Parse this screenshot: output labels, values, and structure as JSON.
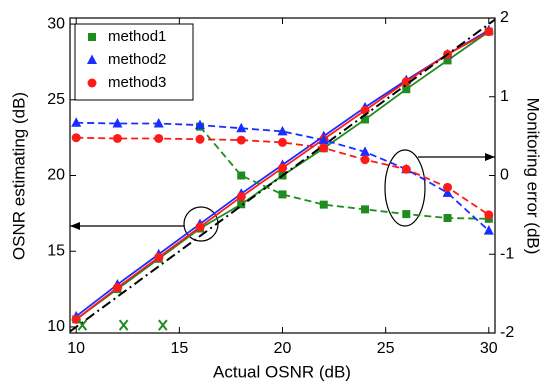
{
  "chart_data": {
    "type": "line",
    "x_label": "Actual OSNR (dB)",
    "y_label": "OSNR estimating (dB)",
    "y2_label": "Monitoring error (dB)",
    "xlim": [
      9.7,
      30.3
    ],
    "ylim": [
      9.6,
      30.4
    ],
    "y2lim": [
      -2,
      2
    ],
    "xticks": [
      10,
      15,
      20,
      25,
      30
    ],
    "yticks": [
      10,
      15,
      20,
      25,
      30
    ],
    "y2ticks": [
      -2,
      -1,
      0,
      1,
      2
    ],
    "legend": "upper left",
    "x": [
      10,
      12,
      14,
      16,
      18,
      20,
      22,
      24,
      26,
      28,
      30
    ],
    "series": [
      {
        "name": "method1",
        "color": "#1f8c1f",
        "marker": "square",
        "dash": "solid",
        "values": [
          10.5,
          12.5,
          14.5,
          16.5,
          18.1,
          20.0,
          21.8,
          23.7,
          25.7,
          27.6,
          29.5
        ]
      },
      {
        "name": "method2",
        "color": "#1a2cff",
        "marker": "triangle",
        "dash": "solid",
        "values": [
          10.7,
          12.8,
          14.8,
          16.8,
          18.8,
          20.7,
          22.6,
          24.5,
          26.3,
          28.0,
          29.6
        ]
      },
      {
        "name": "method3",
        "color": "#ff1a1a",
        "marker": "circle",
        "dash": "solid",
        "values": [
          10.5,
          12.6,
          14.6,
          16.6,
          18.6,
          20.5,
          22.4,
          24.3,
          26.2,
          28.0,
          29.5
        ]
      },
      {
        "color": "#000000",
        "marker": "none",
        "dash": "dashdot",
        "x": [
          9.7,
          30.3
        ],
        "values": [
          9.7,
          30.3
        ]
      },
      {
        "color": "#1f8c1f",
        "marker": "square",
        "dash": "dashed",
        "axis": "y2",
        "values": [
          null,
          null,
          null,
          0.62,
          0.0,
          -0.24,
          -0.37,
          -0.43,
          -0.49,
          -0.54,
          -0.55
        ]
      },
      {
        "color": "#1a2cff",
        "marker": "triangle",
        "dash": "dashed",
        "axis": "y2",
        "values": [
          0.67,
          0.66,
          0.66,
          0.64,
          0.6,
          0.56,
          0.45,
          0.3,
          0.08,
          -0.22,
          -0.7
        ]
      },
      {
        "color": "#ff1a1a",
        "marker": "circle",
        "dash": "dashed",
        "axis": "y2",
        "values": [
          0.48,
          0.47,
          0.47,
          0.46,
          0.45,
          0.42,
          0.35,
          0.2,
          0.08,
          -0.15,
          -0.5
        ]
      },
      {
        "color": "#1f8c1f",
        "marker": "x",
        "dash": "none",
        "axis": "y2",
        "x": [
          10.3,
          12.3,
          14.2
        ],
        "values": [
          -1.9,
          -1.9,
          -1.9
        ]
      }
    ]
  }
}
